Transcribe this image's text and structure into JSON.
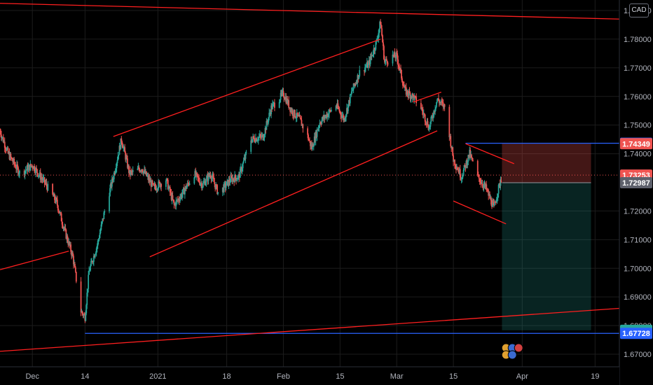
{
  "currency": "CAD",
  "colors": {
    "up": "#26a69a",
    "down": "#ef5350",
    "trend": "#ff1f1f",
    "level": "#2962ff",
    "stop_zone": "rgba(239,83,80,0.28)",
    "target_zone": "rgba(38,166,154,0.22)"
  },
  "chart_data": {
    "type": "candlestick",
    "x_axis_labels": [
      "Dec",
      "14",
      "2021",
      "18",
      "Feb",
      "15",
      "Mar",
      "15",
      "Apr",
      "19"
    ],
    "y_tick_labels": [
      "1.79000",
      "1.78000",
      "1.77000",
      "1.76000",
      "1.75000",
      "1.74000",
      "1.72000",
      "1.71000",
      "1.70000",
      "1.69000",
      "1.68000",
      "1.67000"
    ],
    "ylim": [
      1.665,
      1.8
    ],
    "x_range": [
      "2020-11-23",
      "2021-04-25"
    ],
    "grid": true,
    "price_badges": [
      {
        "value": "1.74366",
        "color": "#2962ff"
      },
      {
        "value": "1.74349",
        "color": "#ef5350"
      },
      {
        "value": "1.73253",
        "color": "#ef5350"
      },
      {
        "value": "1.72987",
        "color": "#5d606b"
      },
      {
        "value": "1.67835",
        "color": "#26a69a"
      },
      {
        "value": "1.67728",
        "color": "#2962ff"
      }
    ],
    "current_price": 1.73253,
    "position": {
      "type": "short",
      "entry": 1.72987,
      "stop": 1.74349,
      "target": 1.67835,
      "start": "2021-03-27",
      "end": "2021-04-18"
    },
    "horizontal_levels": [
      {
        "value": 1.74366,
        "from": "2021-03-18",
        "to": "2021-04-25"
      },
      {
        "value": 1.67728,
        "from": "2020-12-14",
        "to": "2021-04-25"
      }
    ],
    "trendlines": [
      {
        "from": [
          "2020-11-23",
          1.7925
        ],
        "to": [
          "2021-04-25",
          1.787
        ]
      },
      {
        "from": [
          "2020-12-21",
          1.746
        ],
        "to": [
          "2021-02-25",
          1.78
        ]
      },
      {
        "from": [
          "2020-12-30",
          1.704
        ],
        "to": [
          "2021-03-11",
          1.748
        ]
      },
      {
        "from": [
          "2020-11-23",
          1.6995
        ],
        "to": [
          "2020-12-10",
          1.706
        ]
      },
      {
        "from": [
          "2021-03-05",
          1.758
        ],
        "to": [
          "2021-03-12",
          1.7615
        ]
      },
      {
        "from": [
          "2021-03-18",
          1.7435
        ],
        "to": [
          "2021-03-30",
          1.7365
        ]
      },
      {
        "from": [
          "2021-03-15",
          1.7235
        ],
        "to": [
          "2021-03-28",
          1.7155
        ]
      },
      {
        "from": [
          "2020-11-23",
          1.671
        ],
        "to": [
          "2021-04-25",
          1.686
        ]
      }
    ],
    "candles_anchor_series": [
      [
        "2020-11-23",
        1.748
      ],
      [
        "2020-11-25",
        1.74
      ],
      [
        "2020-11-28",
        1.733
      ],
      [
        "2020-12-01",
        1.736
      ],
      [
        "2020-12-04",
        1.73
      ],
      [
        "2020-12-07",
        1.723
      ],
      [
        "2020-12-09",
        1.713
      ],
      [
        "2020-12-11",
        1.704
      ],
      [
        "2020-12-13",
        1.685
      ],
      [
        "2020-12-14",
        1.683
      ],
      [
        "2020-12-15",
        1.699
      ],
      [
        "2020-12-17",
        1.708
      ],
      [
        "2020-12-19",
        1.721
      ],
      [
        "2020-12-21",
        1.732
      ],
      [
        "2020-12-23",
        1.745
      ],
      [
        "2020-12-25",
        1.733
      ],
      [
        "2020-12-28",
        1.735
      ],
      [
        "2020-12-31",
        1.728
      ],
      [
        "2021-01-03",
        1.731
      ],
      [
        "2021-01-05",
        1.722
      ],
      [
        "2021-01-07",
        1.726
      ],
      [
        "2021-01-10",
        1.733
      ],
      [
        "2021-01-12",
        1.729
      ],
      [
        "2021-01-14",
        1.733
      ],
      [
        "2021-01-16",
        1.726
      ],
      [
        "2021-01-19",
        1.731
      ],
      [
        "2021-01-21",
        1.732
      ],
      [
        "2021-01-24",
        1.745
      ],
      [
        "2021-01-27",
        1.746
      ],
      [
        "2021-01-29",
        1.756
      ],
      [
        "2021-02-01",
        1.761
      ],
      [
        "2021-02-03",
        1.755
      ],
      [
        "2021-02-05",
        1.752
      ],
      [
        "2021-02-07",
        1.746
      ],
      [
        "2021-02-08",
        1.742
      ],
      [
        "2021-02-10",
        1.751
      ],
      [
        "2021-02-12",
        1.754
      ],
      [
        "2021-02-14",
        1.757
      ],
      [
        "2021-02-16",
        1.752
      ],
      [
        "2021-02-18",
        1.762
      ],
      [
        "2021-02-20",
        1.769
      ],
      [
        "2021-02-22",
        1.771
      ],
      [
        "2021-02-24",
        1.779
      ],
      [
        "2021-02-25",
        1.786
      ],
      [
        "2021-02-26",
        1.772
      ],
      [
        "2021-02-28",
        1.774
      ],
      [
        "2021-03-01",
        1.774
      ],
      [
        "2021-03-03",
        1.762
      ],
      [
        "2021-03-05",
        1.76
      ],
      [
        "2021-03-07",
        1.756
      ],
      [
        "2021-03-09",
        1.749
      ],
      [
        "2021-03-11",
        1.759
      ],
      [
        "2021-03-13",
        1.756
      ],
      [
        "2021-03-14",
        1.747
      ],
      [
        "2021-03-15",
        1.738
      ],
      [
        "2021-03-17",
        1.732
      ],
      [
        "2021-03-19",
        1.74
      ],
      [
        "2021-03-21",
        1.732
      ],
      [
        "2021-03-23",
        1.728
      ],
      [
        "2021-03-25",
        1.721
      ],
      [
        "2021-03-26",
        1.727
      ],
      [
        "2021-03-27",
        1.7325
      ]
    ]
  }
}
